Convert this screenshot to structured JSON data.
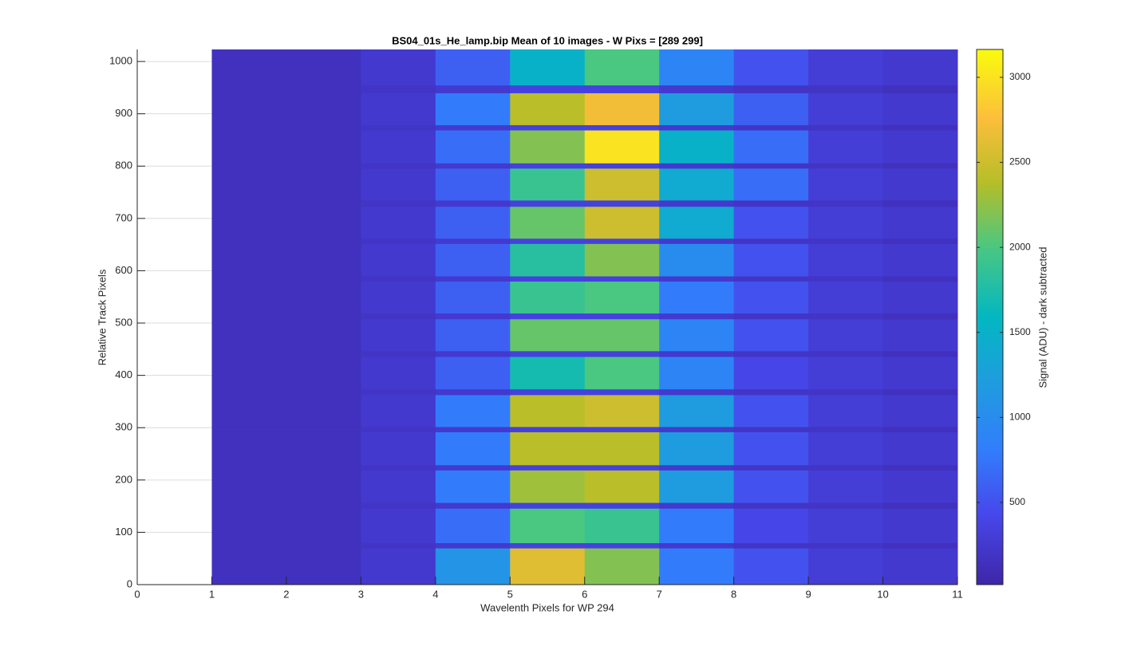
{
  "chart_data": {
    "type": "heatmap",
    "title": "BS04_01s_He_lamp.bip  Mean of 10 images - W Pixs = [289  299]",
    "xlabel": "Wavelenth Pixels for WP 294",
    "ylabel": "Relative Track Pixels",
    "colorbar_label": "Signal (ADU) - dark subtracted",
    "colormap": "parula",
    "xlim": [
      0,
      11
    ],
    "xticks": [
      0,
      1,
      2,
      3,
      4,
      5,
      6,
      7,
      8,
      9,
      10,
      11
    ],
    "ylim": [
      0,
      1023
    ],
    "yticks": [
      0,
      100,
      200,
      300,
      400,
      500,
      600,
      700,
      800,
      900,
      1000
    ],
    "clim": [
      17,
      3164
    ],
    "cticks": [
      500,
      1000,
      1500,
      2000,
      2500,
      3000
    ],
    "grid": true,
    "x_edges": [
      1,
      2,
      3,
      4,
      5,
      6,
      7,
      8,
      9,
      10,
      11
    ],
    "y_edges": [
      0,
      70,
      80,
      146,
      157,
      219,
      229,
      292,
      302,
      363,
      374,
      436,
      447,
      508,
      519,
      580,
      590,
      652,
      662,
      723,
      735,
      796,
      806,
      869,
      879,
      940,
      955,
      1023
    ],
    "values": [
      [
        150,
        150,
        250,
        1100,
        2600,
        2200,
        800,
        500,
        300,
        250
      ],
      [
        150,
        150,
        200,
        250,
        350,
        350,
        250,
        200,
        200,
        150
      ],
      [
        150,
        150,
        250,
        700,
        2000,
        1900,
        800,
        400,
        300,
        250
      ],
      [
        150,
        150,
        200,
        250,
        350,
        350,
        250,
        200,
        200,
        150
      ],
      [
        150,
        150,
        250,
        800,
        2300,
        2400,
        1200,
        500,
        300,
        250
      ],
      [
        150,
        150,
        200,
        250,
        350,
        350,
        250,
        200,
        200,
        150
      ],
      [
        150,
        150,
        250,
        800,
        2400,
        2400,
        1200,
        500,
        300,
        250
      ],
      [
        150,
        150,
        200,
        250,
        350,
        350,
        250,
        200,
        200,
        150
      ],
      [
        150,
        150,
        250,
        800,
        2400,
        2500,
        1200,
        500,
        300,
        250
      ],
      [
        150,
        150,
        200,
        250,
        350,
        350,
        250,
        200,
        200,
        150
      ],
      [
        150,
        150,
        250,
        600,
        1700,
        2000,
        900,
        400,
        300,
        250
      ],
      [
        150,
        150,
        200,
        250,
        350,
        350,
        250,
        200,
        200,
        150
      ],
      [
        150,
        150,
        250,
        600,
        2100,
        2100,
        900,
        500,
        300,
        250
      ],
      [
        150,
        150,
        200,
        250,
        350,
        350,
        250,
        200,
        200,
        150
      ],
      [
        150,
        150,
        250,
        600,
        1900,
        2000,
        800,
        500,
        300,
        250
      ],
      [
        150,
        150,
        200,
        250,
        350,
        350,
        250,
        200,
        200,
        150
      ],
      [
        150,
        150,
        250,
        600,
        1800,
        2200,
        1000,
        500,
        300,
        250
      ],
      [
        150,
        150,
        200,
        250,
        350,
        350,
        250,
        200,
        200,
        150
      ],
      [
        150,
        150,
        250,
        600,
        2100,
        2500,
        1400,
        500,
        300,
        250
      ],
      [
        150,
        150,
        200,
        250,
        350,
        350,
        250,
        200,
        200,
        150
      ],
      [
        150,
        150,
        250,
        600,
        1900,
        2500,
        1400,
        700,
        300,
        250
      ],
      [
        150,
        150,
        200,
        250,
        350,
        350,
        250,
        200,
        200,
        150
      ],
      [
        150,
        150,
        250,
        700,
        2200,
        3000,
        1500,
        700,
        300,
        250
      ],
      [
        150,
        150,
        200,
        250,
        350,
        350,
        250,
        200,
        200,
        150
      ],
      [
        150,
        150,
        250,
        800,
        2400,
        2700,
        1200,
        600,
        300,
        250
      ],
      [
        150,
        150,
        200,
        250,
        350,
        350,
        250,
        200,
        200,
        150
      ],
      [
        150,
        150,
        250,
        600,
        1500,
        2000,
        900,
        500,
        300,
        250
      ]
    ]
  }
}
